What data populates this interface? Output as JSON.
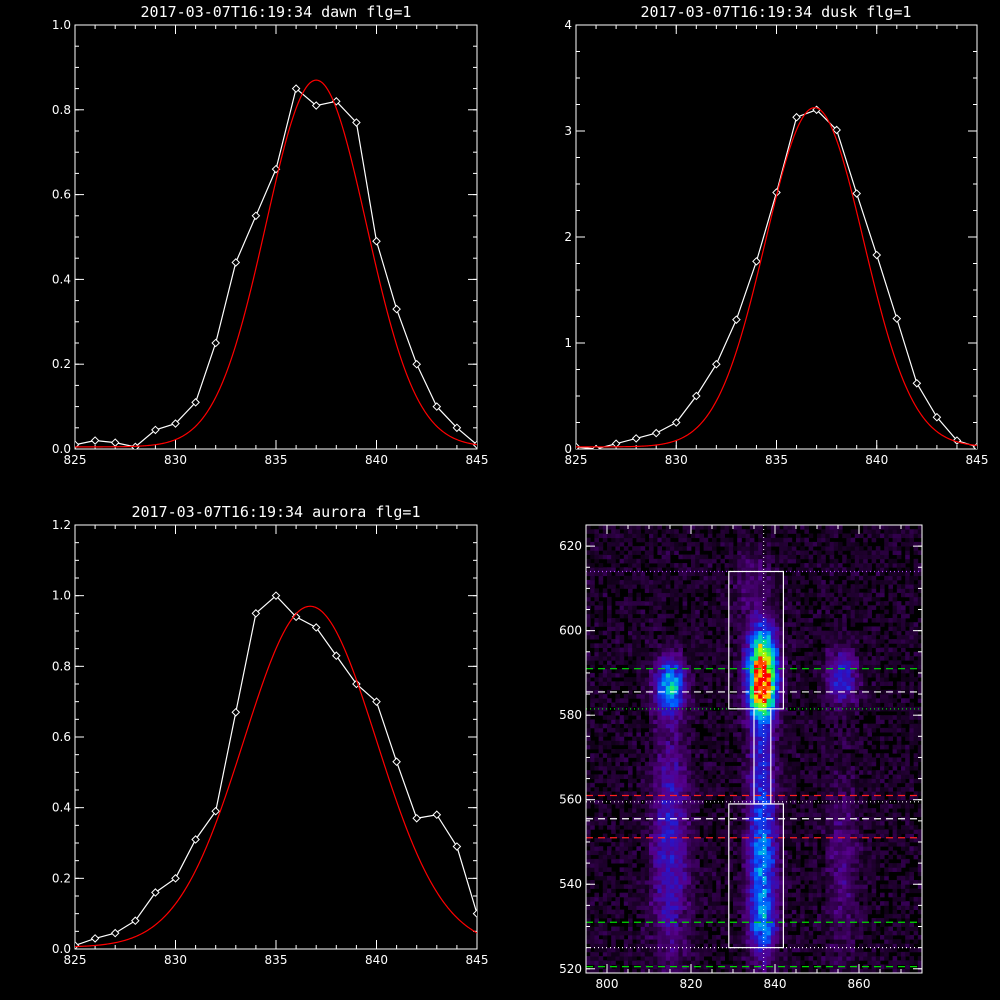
{
  "chart_data": [
    {
      "type": "line",
      "title": "2017-03-07T16:19:34 dawn flg=1",
      "xlim": [
        825,
        845
      ],
      "ylim": [
        0,
        1.0
      ],
      "xticks": [
        825,
        830,
        835,
        840,
        845
      ],
      "yticks": [
        0.0,
        0.2,
        0.4,
        0.6,
        0.8,
        1.0
      ],
      "ytick_labels": [
        "0.0",
        "0.2",
        "0.4",
        "0.6",
        "0.8",
        "1.0"
      ],
      "series": [
        {
          "color": "#ffffff",
          "marker": "diamond",
          "x": [
            825,
            826,
            827,
            828,
            829,
            830,
            831,
            832,
            833,
            834,
            835,
            836,
            837,
            838,
            839,
            840,
            841,
            842,
            843,
            844,
            845
          ],
          "y": [
            0.01,
            0.02,
            0.015,
            0.005,
            0.045,
            0.06,
            0.11,
            0.25,
            0.44,
            0.55,
            0.66,
            0.85,
            0.81,
            0.82,
            0.77,
            0.49,
            0.33,
            0.2,
            0.1,
            0.05,
            0.01
          ]
        },
        {
          "color": "#ff0000",
          "style": "gaussian",
          "peak": 0.865,
          "center": 837.0,
          "sigma": 2.5,
          "offset": 0.005
        }
      ]
    },
    {
      "type": "line",
      "title": "2017-03-07T16:19:34 dusk flg=1",
      "xlim": [
        825,
        845
      ],
      "ylim": [
        0,
        4
      ],
      "xticks": [
        825,
        830,
        835,
        840,
        845
      ],
      "yticks": [
        0,
        1,
        2,
        3,
        4
      ],
      "ytick_labels": [
        "0",
        "1",
        "2",
        "3",
        "4"
      ],
      "series": [
        {
          "color": "#ffffff",
          "marker": "diamond",
          "x": [
            825,
            826,
            827,
            828,
            829,
            830,
            831,
            832,
            833,
            834,
            835,
            836,
            837,
            838,
            839,
            840,
            841,
            842,
            843,
            844,
            845
          ],
          "y": [
            0.02,
            0.0,
            0.05,
            0.1,
            0.15,
            0.25,
            0.5,
            0.8,
            1.22,
            1.77,
            2.42,
            3.13,
            3.2,
            3.01,
            2.41,
            1.83,
            1.23,
            0.62,
            0.3,
            0.08,
            0.02
          ]
        },
        {
          "color": "#ff0000",
          "style": "gaussian",
          "peak": 3.2,
          "center": 836.9,
          "sigma": 2.45,
          "offset": 0.02
        }
      ]
    },
    {
      "type": "line",
      "title": "2017-03-07T16:19:34 aurora flg=1",
      "xlim": [
        825,
        845
      ],
      "ylim": [
        0,
        1.2
      ],
      "xticks": [
        825,
        830,
        835,
        840,
        845
      ],
      "yticks": [
        0.0,
        0.2,
        0.4,
        0.6,
        0.8,
        1.0,
        1.2
      ],
      "ytick_labels": [
        "0.0",
        "0.2",
        "0.4",
        "0.6",
        "0.8",
        "1.0",
        "1.2"
      ],
      "series": [
        {
          "color": "#ffffff",
          "marker": "diamond",
          "x": [
            825,
            826,
            827,
            828,
            829,
            830,
            831,
            832,
            833,
            834,
            835,
            836,
            837,
            838,
            839,
            840,
            841,
            842,
            843,
            844,
            845
          ],
          "y": [
            0.01,
            0.03,
            0.045,
            0.08,
            0.16,
            0.2,
            0.31,
            0.39,
            0.67,
            0.95,
            1.0,
            0.94,
            0.91,
            0.83,
            0.75,
            0.7,
            0.53,
            0.37,
            0.38,
            0.29,
            0.1
          ]
        },
        {
          "color": "#ff0000",
          "style": "gaussian",
          "peak": 0.965,
          "center": 836.7,
          "sigma": 3.3,
          "offset": 0.005
        }
      ]
    },
    {
      "type": "heatmap",
      "xlim": [
        795,
        875
      ],
      "ylim": [
        519,
        625
      ],
      "xticks": [
        800,
        820,
        840,
        860
      ],
      "yticks": [
        520,
        540,
        560,
        580,
        600,
        620
      ],
      "blobs": [
        {
          "x": 837,
          "y": 587,
          "sx": 2.3,
          "sy": 5.5,
          "amp": 1.0
        },
        {
          "x": 837,
          "y": 596,
          "sx": 2.3,
          "sy": 4.5,
          "amp": 0.45
        },
        {
          "x": 837,
          "y": 545,
          "sx": 2.3,
          "sy": 14,
          "amp": 0.42
        },
        {
          "x": 837,
          "y": 530,
          "sx": 2.3,
          "sy": 4,
          "amp": 0.2
        },
        {
          "x": 837,
          "y": 570,
          "sx": 2.0,
          "sy": 8,
          "amp": 0.16
        },
        {
          "x": 815,
          "y": 587,
          "sx": 2.4,
          "sy": 4.5,
          "amp": 0.5
        },
        {
          "x": 815,
          "y": 545,
          "sx": 3.0,
          "sy": 16,
          "amp": 0.22
        },
        {
          "x": 815,
          "y": 565,
          "sx": 2.5,
          "sy": 10,
          "amp": 0.08
        },
        {
          "x": 856,
          "y": 589,
          "sx": 2.4,
          "sy": 4.5,
          "amp": 0.28
        },
        {
          "x": 856,
          "y": 545,
          "sx": 2.5,
          "sy": 14,
          "amp": 0.12
        },
        {
          "x": 835,
          "y": 610,
          "sx": 3.0,
          "sy": 6,
          "amp": 0.1
        }
      ],
      "boxes": [
        {
          "x0": 829,
          "x1": 842,
          "y0": 581.5,
          "y1": 614
        },
        {
          "x0": 829,
          "x1": 842,
          "y0": 525,
          "y1": 559
        },
        {
          "x0": 835,
          "x1": 839,
          "y0": 559,
          "y1": 581.5
        }
      ],
      "hlines": [
        {
          "y": 614,
          "color": "#b050ff",
          "dash": "dotted"
        },
        {
          "y": 591,
          "color": "#00dd00",
          "dash": "dashed"
        },
        {
          "y": 585.5,
          "color": "#ffffff",
          "dash": "dashed"
        },
        {
          "y": 581.5,
          "color": "#00dd00",
          "dash": "dotted"
        },
        {
          "y": 561,
          "color": "#ff2020",
          "dash": "dashed"
        },
        {
          "y": 559.5,
          "color": "#ffffff",
          "dash": "dotted"
        },
        {
          "y": 555.5,
          "color": "#ffffff",
          "dash": "dashed"
        },
        {
          "y": 551,
          "color": "#ff2020",
          "dash": "dashed"
        },
        {
          "y": 531,
          "color": "#00dd00",
          "dash": "dashed"
        },
        {
          "y": 525,
          "color": "#ffffff",
          "dash": "dotted"
        },
        {
          "y": 520.5,
          "color": "#00dd00",
          "dash": "dashed"
        }
      ],
      "vlines": [
        {
          "x": 837.3,
          "color": "#ffffff",
          "dash": "dotted"
        }
      ]
    }
  ]
}
